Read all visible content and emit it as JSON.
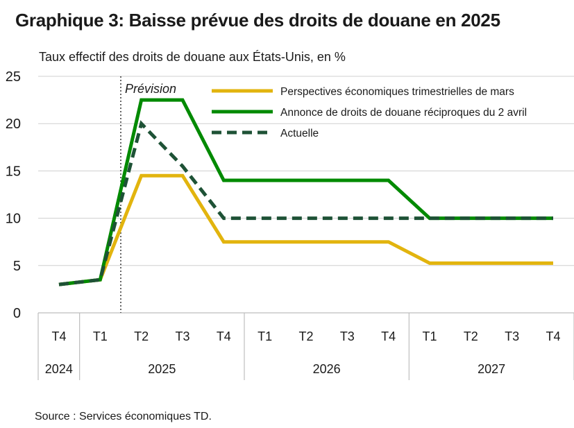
{
  "title": "Graphique 3: Baisse prévue des droits de douane en 2025",
  "source": "Source : Services économiques TD.",
  "colors": {
    "mars": "#E2B40E",
    "avril": "#008A00",
    "actuelle": "#1E5236",
    "grid": "#cfcfcf",
    "axis": "#bdbdbd"
  },
  "chart_data": {
    "type": "line",
    "title": "Graphique 3: Baisse prévue des droits de douane en 2025",
    "ylabel": "Taux effectif des droits de douane aux États-Unis, en %",
    "xlabel": "",
    "ylim": [
      0,
      25
    ],
    "yticks": [
      "0",
      "5",
      "10",
      "15",
      "20",
      "25"
    ],
    "grid": true,
    "legend_position": "top-right",
    "categories": [
      "T4",
      "T1",
      "T2",
      "T3",
      "T4",
      "T1",
      "T2",
      "T3",
      "T4",
      "T1",
      "T2",
      "T3",
      "T4"
    ],
    "year_groups": [
      {
        "label": "2024",
        "count": 1
      },
      {
        "label": "2025",
        "count": 4
      },
      {
        "label": "2026",
        "count": 4
      },
      {
        "label": "2027",
        "count": 4
      }
    ],
    "annotation": {
      "label": "Prévision",
      "between": [
        1,
        2
      ]
    },
    "series": [
      {
        "name": "Perspectives économiques trimestrielles de mars",
        "style": "solid",
        "color_key": "mars",
        "values": [
          3,
          3.5,
          14.5,
          14.5,
          7.5,
          7.5,
          7.5,
          7.5,
          7.5,
          5.25,
          5.25,
          5.25,
          5.25
        ]
      },
      {
        "name": "Annonce de droits de douane réciproques du 2 avril",
        "style": "solid",
        "color_key": "avril",
        "values": [
          3,
          3.5,
          22.5,
          22.5,
          14,
          14,
          14,
          14,
          14,
          10,
          10,
          10,
          10
        ]
      },
      {
        "name": "Actuelle",
        "style": "dashed",
        "color_key": "actuelle",
        "values": [
          3,
          3.5,
          20,
          15.5,
          10,
          10,
          10,
          10,
          10,
          10,
          10,
          10,
          10
        ]
      }
    ]
  }
}
